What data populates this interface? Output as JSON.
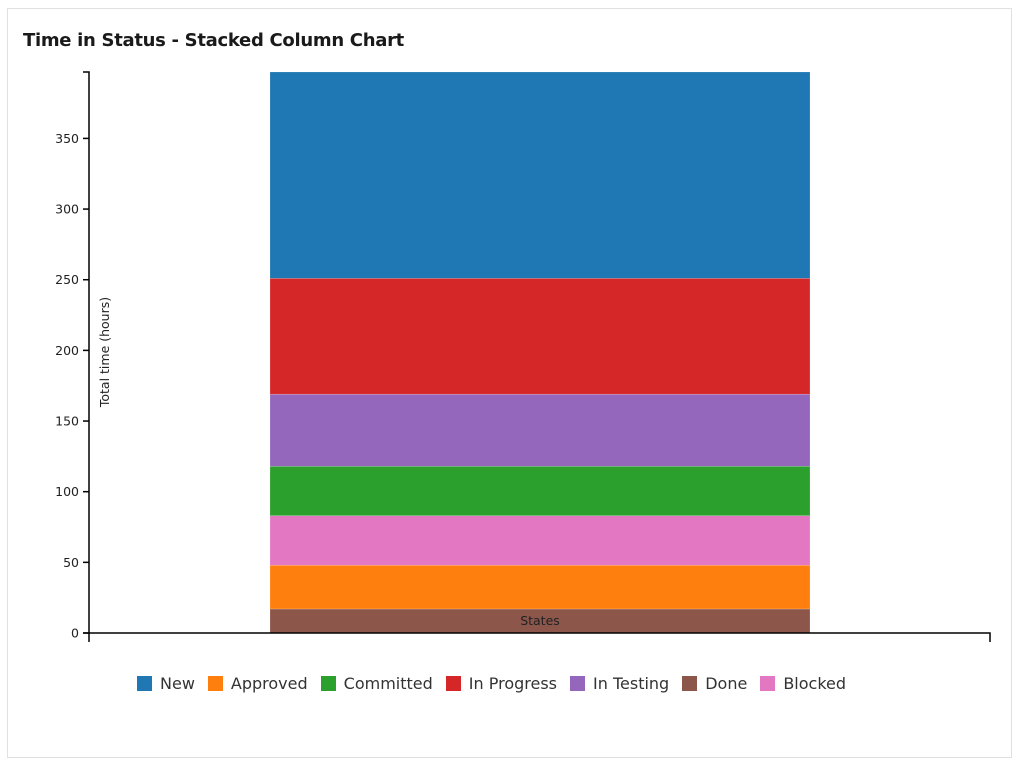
{
  "card": {
    "title": "Time in Status - Stacked Column Chart"
  },
  "chart_data": {
    "type": "bar",
    "stacked": true,
    "title": "Time in Status - Stacked Column Chart",
    "xlabel": "States",
    "ylabel": "Total time (hours)",
    "categories": [
      "States"
    ],
    "ylim": [
      0,
      397
    ],
    "yticks": [
      0,
      50,
      100,
      150,
      200,
      250,
      300,
      350
    ],
    "grid": false,
    "legend_position": "bottom",
    "stack_order_bottom_to_top": [
      "Done",
      "Approved",
      "Blocked",
      "Committed",
      "In Testing",
      "In Progress",
      "New"
    ],
    "series": [
      {
        "name": "Done",
        "color": "#8c564b",
        "values": [
          17
        ]
      },
      {
        "name": "Approved",
        "color": "#ff7f0e",
        "values": [
          31
        ]
      },
      {
        "name": "Blocked",
        "color": "#e377c2",
        "values": [
          35
        ]
      },
      {
        "name": "Committed",
        "color": "#2ca02c",
        "values": [
          35
        ]
      },
      {
        "name": "In Testing",
        "color": "#9467bd",
        "values": [
          51
        ]
      },
      {
        "name": "In Progress",
        "color": "#d62728",
        "values": [
          82
        ]
      },
      {
        "name": "New",
        "color": "#1f77b4",
        "values": [
          146
        ]
      }
    ]
  },
  "legend": {
    "items": [
      {
        "label": "New",
        "color": "#1f77b4"
      },
      {
        "label": "Approved",
        "color": "#ff7f0e"
      },
      {
        "label": "Committed",
        "color": "#2ca02c"
      },
      {
        "label": "In Progress",
        "color": "#d62728"
      },
      {
        "label": "In Testing",
        "color": "#9467bd"
      },
      {
        "label": "Done",
        "color": "#8c564b"
      },
      {
        "label": "Blocked",
        "color": "#e377c2"
      }
    ]
  }
}
